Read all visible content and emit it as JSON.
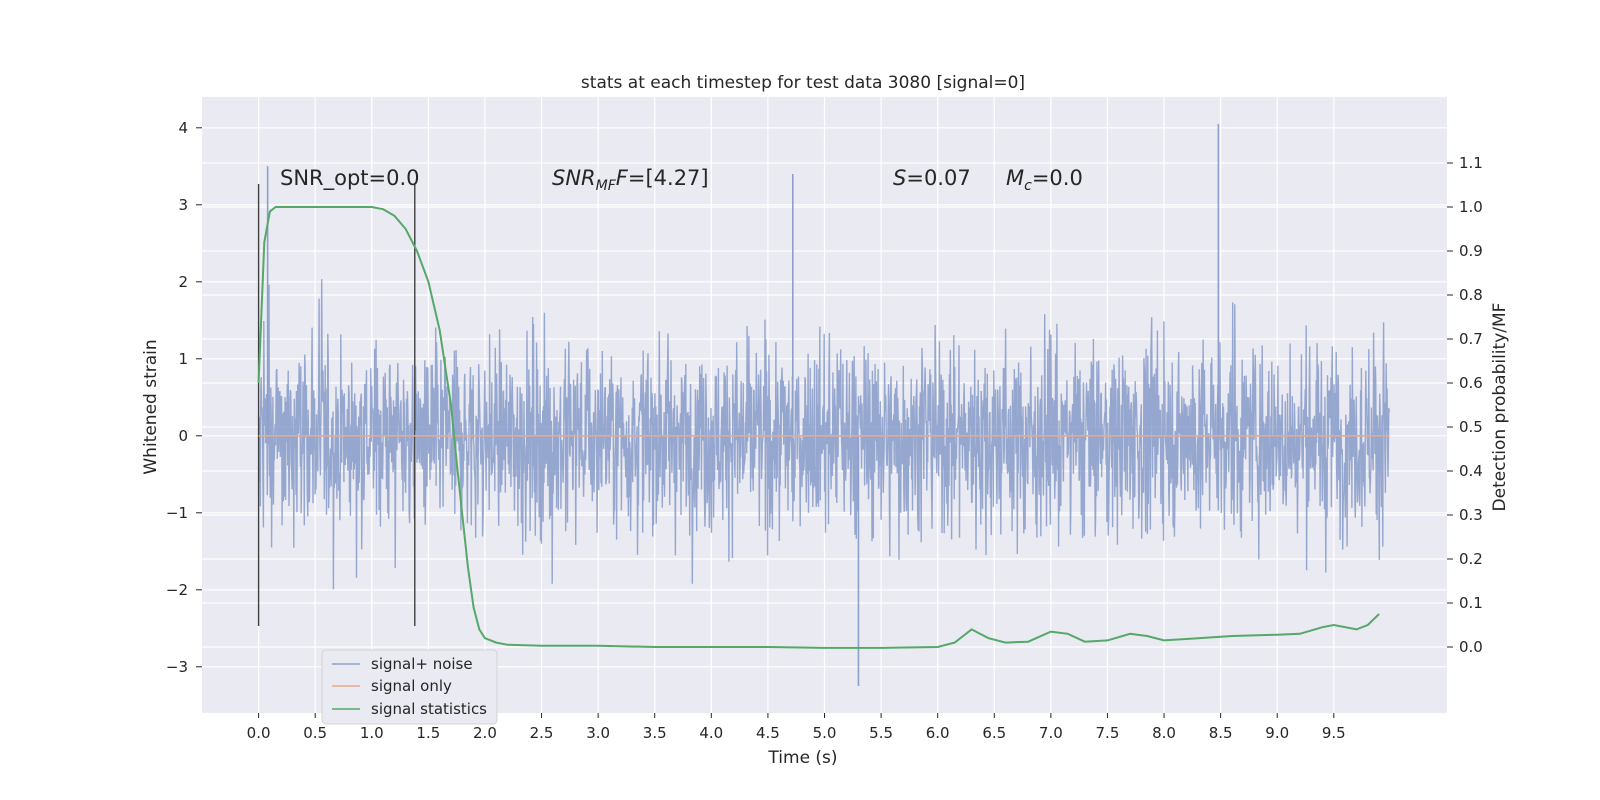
{
  "chart_data": {
    "type": "line",
    "title": "stats at each timestep for test data 3080 [signal=0]",
    "xlabel": "Time (s)",
    "ylabel": "Whitened strain",
    "y2label": "Detection probability/MF",
    "xlim": [
      -0.5,
      10.5
    ],
    "ylim": [
      -3.6,
      4.4
    ],
    "y2lim": [
      -0.15,
      1.25
    ],
    "xticks": [
      "0.0",
      "0.5",
      "1.0",
      "1.5",
      "2.0",
      "2.5",
      "3.0",
      "3.5",
      "4.0",
      "4.5",
      "5.0",
      "5.5",
      "6.0",
      "6.5",
      "7.0",
      "7.5",
      "8.0",
      "8.5",
      "9.0",
      "9.5"
    ],
    "yticks": [
      "4",
      "3",
      "2",
      "1",
      "0",
      "−1",
      "−2",
      "−3"
    ],
    "y2ticks": [
      "1.1",
      "1.0",
      "0.9",
      "0.8",
      "0.7",
      "0.6",
      "0.5",
      "0.4",
      "0.3",
      "0.2",
      "0.1",
      "0.0"
    ],
    "grid": true,
    "legend_position": "lower-left",
    "annotations": {
      "snr_opt": "SNR_opt=0.0",
      "snr_mf_prefix": "SNR",
      "snr_mf_sub": "MF",
      "snr_mf_value": "=[4.27]",
      "s_var": "S",
      "s_value": "=0.07",
      "mc_var": "M",
      "mc_sub": "c",
      "mc_value": "=0.0"
    },
    "vlines_x": [
      0.0,
      1.38
    ],
    "series": [
      {
        "name": "signal+ noise",
        "color": "#8da0cb",
        "description_range": [
          0.0,
          9.99
        ],
        "approx_envelope": [
          -3.3,
          4.05
        ],
        "noted_peaks": [
          {
            "x": 8.48,
            "y": 4.05
          },
          {
            "x": 0.08,
            "y": 3.5
          },
          {
            "x": 4.72,
            "y": 3.4
          },
          {
            "x": 5.3,
            "y": -3.25
          }
        ]
      },
      {
        "name": "signal only",
        "color": "#e8a98a",
        "x": [
          0.0,
          9.99
        ],
        "y": [
          0.0,
          0.0
        ]
      },
      {
        "name": "signal statistics",
        "color": "#55a868",
        "axis": "right",
        "x": [
          0.0,
          0.05,
          0.1,
          0.15,
          0.2,
          0.3,
          0.5,
          0.8,
          1.0,
          1.1,
          1.2,
          1.3,
          1.4,
          1.5,
          1.6,
          1.7,
          1.75,
          1.8,
          1.85,
          1.9,
          1.95,
          2.0,
          2.1,
          2.2,
          2.5,
          3.0,
          3.5,
          4.0,
          4.5,
          5.0,
          5.5,
          6.0,
          6.15,
          6.3,
          6.45,
          6.6,
          6.8,
          7.0,
          7.15,
          7.3,
          7.5,
          7.7,
          7.85,
          8.0,
          8.3,
          8.6,
          9.0,
          9.2,
          9.4,
          9.5,
          9.7,
          9.8,
          9.9
        ],
        "y": [
          0.6,
          0.92,
          0.99,
          1.0,
          1.0,
          1.0,
          1.0,
          1.0,
          1.0,
          0.995,
          0.98,
          0.95,
          0.9,
          0.83,
          0.72,
          0.55,
          0.42,
          0.3,
          0.18,
          0.09,
          0.04,
          0.02,
          0.01,
          0.005,
          0.003,
          0.003,
          0.0,
          0.0,
          0.0,
          -0.002,
          -0.002,
          0.0,
          0.01,
          0.04,
          0.02,
          0.01,
          0.012,
          0.035,
          0.03,
          0.012,
          0.015,
          0.03,
          0.025,
          0.015,
          0.02,
          0.025,
          0.028,
          0.03,
          0.045,
          0.05,
          0.04,
          0.05,
          0.075
        ]
      }
    ]
  }
}
